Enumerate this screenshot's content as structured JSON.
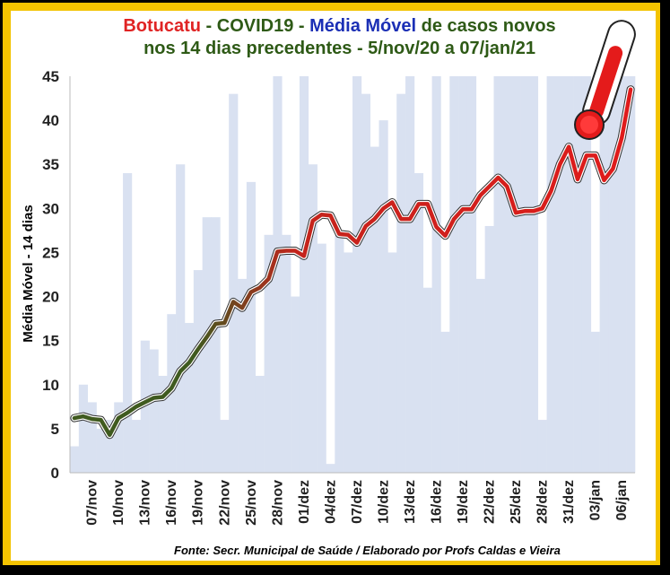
{
  "title": {
    "city": "Botucatu",
    "sep1": " - ",
    "disease": "COVID19",
    "sep2": " - ",
    "metric": "Média Móvel",
    "rest1": " de casos novos",
    "line2": "nos 14 dias precedentes - 5/nov/20 a 07/jan/21"
  },
  "source": "Fonte: Secr. Municipal de Saúde / Elaborado por Profs Caldas e Vieira",
  "colors": {
    "frame": "#f3c300",
    "bars": "#d9e1f1",
    "line_start": "#3f5a1f",
    "line_end": "#e01b1b",
    "title_red": "#e02424",
    "title_green": "#2e5a16",
    "title_blue": "#1b2fb5"
  },
  "icons": {
    "thermometer": "thermometer-icon"
  },
  "chart_data": {
    "type": "line",
    "ylabel": "Média Móvel - 14 dias",
    "xlabel": "",
    "ylim": [
      0,
      45
    ],
    "yticks": [
      0,
      5,
      10,
      15,
      20,
      25,
      30,
      35,
      40,
      45
    ],
    "grid": false,
    "legend": "none",
    "x": [
      "05/nov",
      "06/nov",
      "07/nov",
      "08/nov",
      "09/nov",
      "10/nov",
      "11/nov",
      "12/nov",
      "13/nov",
      "14/nov",
      "15/nov",
      "16/nov",
      "17/nov",
      "18/nov",
      "19/nov",
      "20/nov",
      "21/nov",
      "22/nov",
      "23/nov",
      "24/nov",
      "25/nov",
      "26/nov",
      "27/nov",
      "28/nov",
      "29/nov",
      "30/nov",
      "01/dez",
      "02/dez",
      "03/dez",
      "04/dez",
      "05/dez",
      "06/dez",
      "07/dez",
      "08/dez",
      "09/dez",
      "10/dez",
      "11/dez",
      "12/dez",
      "13/dez",
      "14/dez",
      "15/dez",
      "16/dez",
      "17/dez",
      "18/dez",
      "19/dez",
      "20/dez",
      "21/dez",
      "22/dez",
      "23/dez",
      "24/dez",
      "25/dez",
      "26/dez",
      "27/dez",
      "28/dez",
      "29/dez",
      "30/dez",
      "31/dez",
      "01/jan",
      "02/jan",
      "03/jan",
      "04/jan",
      "05/jan",
      "06/jan",
      "07/jan"
    ],
    "xticks": [
      "07/nov",
      "10/nov",
      "13/nov",
      "16/nov",
      "19/nov",
      "22/nov",
      "25/nov",
      "28/nov",
      "01/dez",
      "04/dez",
      "07/dez",
      "10/dez",
      "13/dez",
      "16/dez",
      "19/dez",
      "22/dez",
      "25/dez",
      "28/dez",
      "31/dez",
      "03/jan",
      "06/jan"
    ],
    "series": [
      {
        "type": "bar",
        "values": [
          3,
          10,
          8,
          5,
          6,
          8,
          34,
          6,
          15,
          14,
          11,
          18,
          35,
          17,
          23,
          29,
          29,
          6,
          43,
          22,
          33,
          11,
          27,
          45,
          27,
          20,
          45,
          35,
          26,
          1,
          27,
          25,
          45,
          43,
          37,
          40,
          25,
          43,
          45,
          34,
          21,
          45,
          16,
          45,
          45,
          45,
          22,
          28,
          45,
          45,
          45,
          45,
          45,
          6,
          45,
          45,
          45,
          45,
          45,
          16,
          45,
          45,
          45,
          45
        ]
      },
      {
        "type": "line",
        "values": [
          6.2,
          6.4,
          6.1,
          6.0,
          4.3,
          6.2,
          6.8,
          7.5,
          8.0,
          8.5,
          8.6,
          9.6,
          11.5,
          12.5,
          14.0,
          15.4,
          16.9,
          17.0,
          19.4,
          18.7,
          20.5,
          21.0,
          22.0,
          25.1,
          25.2,
          25.2,
          24.6,
          28.6,
          29.3,
          29.2,
          27.1,
          27.0,
          26.1,
          28.0,
          28.8,
          30.0,
          30.7,
          28.8,
          28.8,
          30.5,
          30.5,
          27.9,
          26.9,
          28.8,
          29.9,
          29.9,
          31.5,
          32.5,
          33.5,
          32.5,
          29.5,
          29.7,
          29.7,
          30.0,
          32.0,
          35.0,
          37.0,
          33.3,
          36.0,
          36.0,
          33.2,
          34.5,
          38.0,
          43.5
        ]
      }
    ]
  }
}
